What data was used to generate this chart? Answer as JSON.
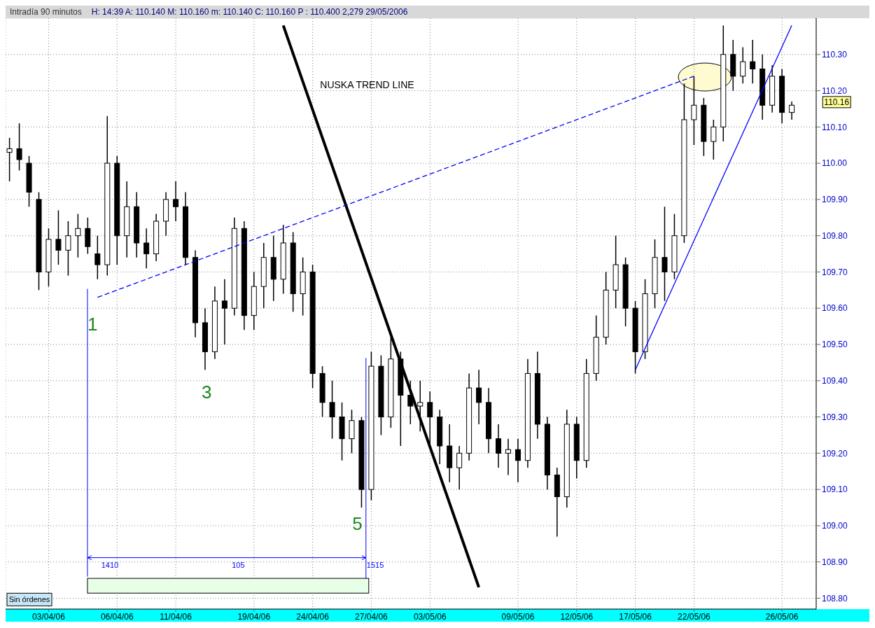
{
  "chart_data": {
    "type": "candlestick",
    "title": "Intradía 90 minutos",
    "subtitle": "H: 14:39  A: 110.140  M: 110.160  m: 110.140  C: 110.160  P : 110.400  2,279  29/05/2006",
    "color": "#000000",
    "categories": [
      null,
      null,
      null,
      null,
      "03/04/06",
      null,
      null,
      null,
      null,
      null,
      null,
      "06/04/06",
      null,
      null,
      null,
      null,
      null,
      "11/04/06",
      null,
      null,
      null,
      null,
      null,
      null,
      null,
      "19/04/06",
      null,
      null,
      null,
      null,
      null,
      "24/04/06",
      null,
      null,
      null,
      null,
      null,
      "27/04/06",
      null,
      null,
      null,
      null,
      null,
      "03/05/06",
      null,
      null,
      null,
      null,
      null,
      null,
      null,
      null,
      "09/05/06",
      null,
      null,
      null,
      null,
      null,
      "12/05/06",
      null,
      null,
      null,
      null,
      null,
      "17/05/06",
      null,
      null,
      null,
      null,
      null,
      "22/05/06",
      null,
      null,
      null,
      null,
      null,
      null,
      null,
      null,
      "26/05/06",
      null
    ],
    "ohlc": [
      [
        110.03,
        110.07,
        109.95,
        110.04
      ],
      [
        110.04,
        110.11,
        109.98,
        110.01
      ],
      [
        110.0,
        110.02,
        109.88,
        109.92
      ],
      [
        109.9,
        109.92,
        109.65,
        109.7
      ],
      [
        109.7,
        109.82,
        109.66,
        109.79
      ],
      [
        109.79,
        109.87,
        109.72,
        109.76
      ],
      [
        109.76,
        109.84,
        109.69,
        109.8
      ],
      [
        109.8,
        109.86,
        109.74,
        109.82
      ],
      [
        109.82,
        109.85,
        109.75,
        109.77
      ],
      [
        109.75,
        109.8,
        109.68,
        109.72
      ],
      [
        109.72,
        110.13,
        109.69,
        110.0
      ],
      [
        110.0,
        110.02,
        109.72,
        109.8
      ],
      [
        109.8,
        109.95,
        109.74,
        109.88
      ],
      [
        109.88,
        109.92,
        109.74,
        109.78
      ],
      [
        109.78,
        109.82,
        109.71,
        109.75
      ],
      [
        109.75,
        109.86,
        109.73,
        109.84
      ],
      [
        109.84,
        109.92,
        109.8,
        109.9
      ],
      [
        109.9,
        109.95,
        109.84,
        109.88
      ],
      [
        109.88,
        109.92,
        109.72,
        109.74
      ],
      [
        109.74,
        109.76,
        109.52,
        109.56
      ],
      [
        109.56,
        109.6,
        109.43,
        109.48
      ],
      [
        109.48,
        109.66,
        109.46,
        109.62
      ],
      [
        109.62,
        109.68,
        109.5,
        109.6
      ],
      [
        109.6,
        109.85,
        109.58,
        109.82
      ],
      [
        109.82,
        109.84,
        109.54,
        109.58
      ],
      [
        109.58,
        109.7,
        109.54,
        109.66
      ],
      [
        109.66,
        109.78,
        109.6,
        109.74
      ],
      [
        109.74,
        109.8,
        109.62,
        109.68
      ],
      [
        109.68,
        109.83,
        109.64,
        109.78
      ],
      [
        109.78,
        109.81,
        109.59,
        109.64
      ],
      [
        109.64,
        109.74,
        109.58,
        109.7
      ],
      [
        109.7,
        109.72,
        109.38,
        109.42
      ],
      [
        109.42,
        109.44,
        109.3,
        109.34
      ],
      [
        109.34,
        109.4,
        109.24,
        109.3
      ],
      [
        109.3,
        109.34,
        109.18,
        109.24
      ],
      [
        109.24,
        109.32,
        109.2,
        109.29
      ],
      [
        109.29,
        109.3,
        109.05,
        109.1
      ],
      [
        109.1,
        109.48,
        109.07,
        109.44
      ],
      [
        109.44,
        109.47,
        109.25,
        109.3
      ],
      [
        109.3,
        109.52,
        109.27,
        109.46
      ],
      [
        109.46,
        109.48,
        109.22,
        109.36
      ],
      [
        109.36,
        109.4,
        109.28,
        109.33
      ],
      [
        109.33,
        109.4,
        109.26,
        109.34
      ],
      [
        109.34,
        109.37,
        109.22,
        109.3
      ],
      [
        109.3,
        109.32,
        109.17,
        109.22
      ],
      [
        109.22,
        109.28,
        109.12,
        109.16
      ],
      [
        109.16,
        109.22,
        109.1,
        109.2
      ],
      [
        109.2,
        109.42,
        109.18,
        109.38
      ],
      [
        109.38,
        109.43,
        109.28,
        109.34
      ],
      [
        109.34,
        109.38,
        109.2,
        109.24
      ],
      [
        109.24,
        109.28,
        109.16,
        109.2
      ],
      [
        109.2,
        109.24,
        109.14,
        109.21
      ],
      [
        109.21,
        109.24,
        109.12,
        109.18
      ],
      [
        109.18,
        109.46,
        109.16,
        109.42
      ],
      [
        109.42,
        109.48,
        109.24,
        109.28
      ],
      [
        109.28,
        109.3,
        109.1,
        109.14
      ],
      [
        109.14,
        109.16,
        108.97,
        109.08
      ],
      [
        109.08,
        109.32,
        109.05,
        109.28
      ],
      [
        109.28,
        109.3,
        109.13,
        109.18
      ],
      [
        109.18,
        109.46,
        109.16,
        109.42
      ],
      [
        109.42,
        109.58,
        109.4,
        109.52
      ],
      [
        109.52,
        109.7,
        109.5,
        109.65
      ],
      [
        109.65,
        109.8,
        109.6,
        109.72
      ],
      [
        109.72,
        109.74,
        109.55,
        109.6
      ],
      [
        109.6,
        109.62,
        109.42,
        109.48
      ],
      [
        109.48,
        109.68,
        109.46,
        109.64
      ],
      [
        109.64,
        109.79,
        109.6,
        109.74
      ],
      [
        109.74,
        109.88,
        109.62,
        109.7
      ],
      [
        109.7,
        109.86,
        109.68,
        109.8
      ],
      [
        109.8,
        110.22,
        109.78,
        110.12
      ],
      [
        110.12,
        110.24,
        110.05,
        110.16
      ],
      [
        110.16,
        110.18,
        110.02,
        110.06
      ],
      [
        110.06,
        110.12,
        110.01,
        110.1
      ],
      [
        110.1,
        110.38,
        110.06,
        110.3
      ],
      [
        110.3,
        110.34,
        110.2,
        110.24
      ],
      [
        110.24,
        110.32,
        110.22,
        110.28
      ],
      [
        110.28,
        110.34,
        110.22,
        110.26
      ],
      [
        110.26,
        110.3,
        110.12,
        110.16
      ],
      [
        110.16,
        110.27,
        110.14,
        110.24
      ],
      [
        110.24,
        110.26,
        110.11,
        110.14
      ],
      [
        110.14,
        110.17,
        110.12,
        110.16
      ]
    ],
    "series": [
      {
        "type": "line",
        "name": "NUSKA TREND LINE",
        "color": "#000000",
        "values": [
          null,
          null,
          null,
          null,
          null,
          null,
          null,
          null,
          null,
          null,
          null,
          null,
          null,
          null,
          null,
          null,
          null,
          null,
          null,
          null,
          null,
          null,
          null,
          null,
          null,
          null,
          null,
          null,
          110.38,
          null,
          null,
          null,
          null,
          null,
          null,
          null,
          null,
          null,
          null,
          null,
          null,
          null,
          null,
          null,
          null,
          null,
          null,
          null,
          108.83,
          null,
          null,
          null,
          null,
          null,
          null,
          null,
          null,
          null,
          null,
          null,
          null,
          null,
          null,
          null,
          null,
          null,
          null,
          null,
          null,
          null,
          null,
          null,
          null,
          null,
          null,
          null,
          null,
          null,
          null,
          null,
          null
        ]
      },
      {
        "type": "line",
        "color": "#0000ff",
        "line_style": "dashed",
        "values": [
          null,
          null,
          null,
          null,
          null,
          null,
          null,
          null,
          null,
          109.63,
          null,
          null,
          null,
          null,
          null,
          null,
          null,
          null,
          null,
          null,
          null,
          null,
          null,
          null,
          null,
          null,
          null,
          null,
          null,
          null,
          null,
          null,
          null,
          null,
          null,
          null,
          null,
          null,
          null,
          null,
          null,
          null,
          null,
          null,
          null,
          null,
          null,
          null,
          null,
          null,
          null,
          null,
          null,
          null,
          null,
          null,
          null,
          null,
          null,
          null,
          null,
          null,
          null,
          null,
          null,
          null,
          null,
          null,
          null,
          null,
          110.24,
          null,
          null,
          null,
          null,
          null,
          null,
          null,
          null,
          null,
          null
        ]
      },
      {
        "type": "line",
        "color": "#0000ff",
        "values": [
          null,
          null,
          null,
          null,
          null,
          null,
          null,
          null,
          null,
          null,
          null,
          null,
          null,
          null,
          null,
          null,
          null,
          null,
          null,
          null,
          null,
          null,
          null,
          null,
          null,
          null,
          null,
          null,
          null,
          null,
          null,
          null,
          null,
          null,
          null,
          null,
          null,
          null,
          null,
          null,
          null,
          null,
          null,
          null,
          null,
          null,
          null,
          null,
          null,
          null,
          null,
          null,
          null,
          null,
          null,
          null,
          null,
          null,
          null,
          null,
          null,
          null,
          null,
          null,
          109.43,
          null,
          null,
          null,
          null,
          null,
          null,
          null,
          null,
          null,
          null,
          null,
          null,
          null,
          null,
          null,
          110.38
        ]
      }
    ],
    "ylim": [
      108.77,
      110.4
    ],
    "yticks": [
      {
        "value": 108.8,
        "label": "108.80"
      },
      {
        "value": 108.9,
        "label": "108.90"
      },
      {
        "value": 109.0,
        "label": "109.00"
      },
      {
        "value": 109.1,
        "label": "109.10"
      },
      {
        "value": 109.2,
        "label": "109.20"
      },
      {
        "value": 109.3,
        "label": "109.30"
      },
      {
        "value": 109.4,
        "label": "109.40"
      },
      {
        "value": 109.5,
        "label": "109.50"
      },
      {
        "value": 109.6,
        "label": "109.60"
      },
      {
        "value": 109.7,
        "label": "109.70"
      },
      {
        "value": 109.8,
        "label": "109.80"
      },
      {
        "value": 109.9,
        "label": "109.90"
      },
      {
        "value": 110.0,
        "label": "110.00"
      },
      {
        "value": 110.1,
        "label": "110.10"
      },
      {
        "value": 110.2,
        "label": "110.20"
      },
      {
        "value": 110.3,
        "label": "110.30"
      }
    ],
    "grid": true,
    "annotations": [
      "1",
      "3",
      "5",
      "1410",
      "105",
      "1515",
      "110.16",
      "Sin órdenes"
    ]
  }
}
